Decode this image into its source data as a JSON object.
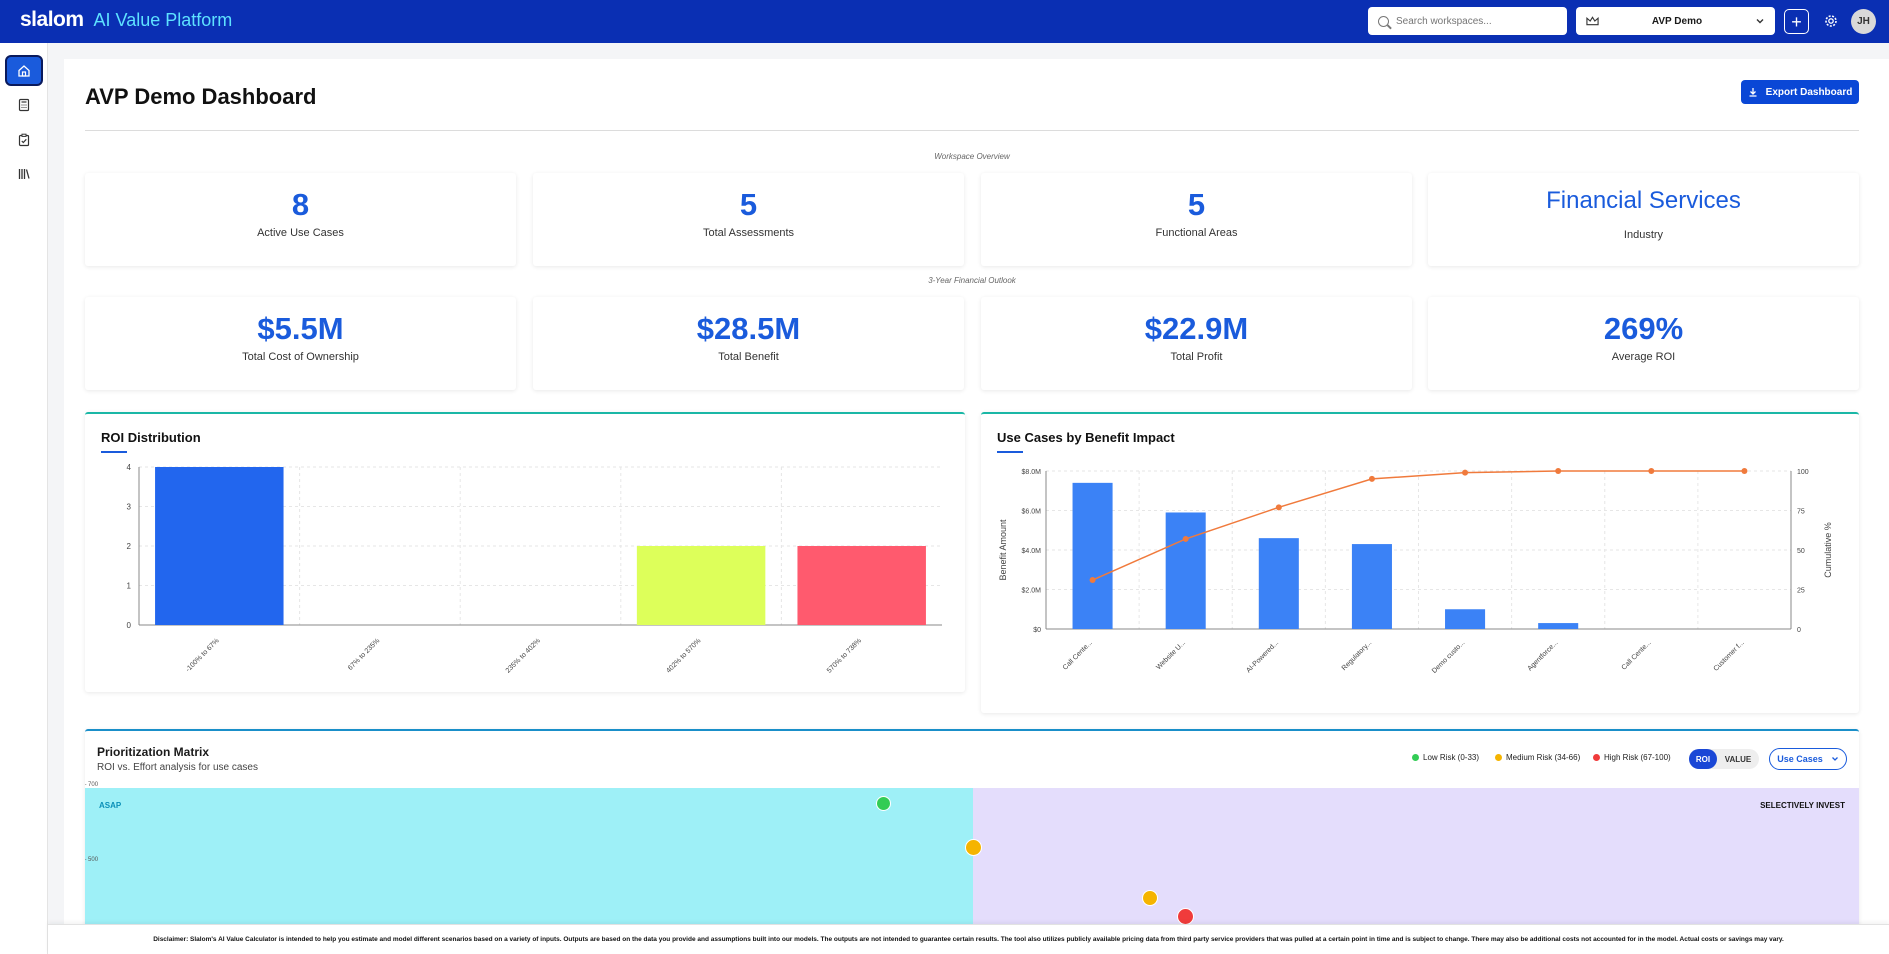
{
  "header": {
    "brand_logo": "slalom",
    "brand_name": "AI Value Platform",
    "search_placeholder": "Search workspaces...",
    "workspace": "AVP Demo",
    "add_label": "+",
    "avatar_initials": "JH"
  },
  "sidebar": {
    "items": [
      {
        "icon": "home-icon",
        "active": true
      },
      {
        "icon": "calculator-icon",
        "active": false
      },
      {
        "icon": "clipboard-check-icon",
        "active": false
      },
      {
        "icon": "library-icon",
        "active": false
      }
    ]
  },
  "page": {
    "title": "AVP Demo Dashboard",
    "export_label": "Export Dashboard"
  },
  "overview": {
    "label": "Workspace Overview",
    "stats": [
      {
        "value": "8",
        "label": "Active Use Cases"
      },
      {
        "value": "5",
        "label": "Total Assessments"
      },
      {
        "value": "5",
        "label": "Functional Areas"
      },
      {
        "value": "Financial Services",
        "label": "Industry"
      }
    ]
  },
  "financial": {
    "label": "3-Year Financial Outlook",
    "stats": [
      {
        "value": "$5.5M",
        "label": "Total Cost of Ownership"
      },
      {
        "value": "$28.5M",
        "label": "Total Benefit"
      },
      {
        "value": "$22.9M",
        "label": "Total Profit"
      },
      {
        "value": "269%",
        "label": "Average ROI"
      }
    ]
  },
  "roi_panel": {
    "title": "ROI Distribution"
  },
  "benefit_panel": {
    "title": "Use Cases by Benefit Impact"
  },
  "chart_data": [
    {
      "type": "bar",
      "title": "ROI Distribution",
      "categories": [
        "-100% to 67%",
        "67% to 235%",
        "235% to 402%",
        "402% to 570%",
        "570% to 738%"
      ],
      "values": [
        4,
        0,
        0,
        2,
        2
      ],
      "colors": [
        "#2266ee",
        "#2266ee",
        "#2266ee",
        "#ddff5a",
        "#ff5a6e"
      ],
      "ylim": [
        0,
        4
      ],
      "yticks": [
        0,
        1,
        2,
        3,
        4
      ],
      "grid": true
    },
    {
      "type": "bar",
      "title": "Use Cases by Benefit Impact",
      "categories": [
        "Call Cente...",
        "Website U...",
        "AI-Powered...",
        "Regulatory...",
        "Demo custo...",
        "Agentforce...",
        "Call Cente...",
        "Customer f..."
      ],
      "ylabel": "Benefit Amount",
      "y2label": "Cumulative %",
      "ylim": [
        0,
        8000000
      ],
      "yticks": [
        "$0",
        "$2.0M",
        "$4.0M",
        "$6.0M",
        "$8.0M"
      ],
      "y2lim": [
        0,
        100
      ],
      "y2ticks": [
        "0",
        "25",
        "50",
        "75",
        "100"
      ],
      "series": [
        {
          "type": "bar",
          "values": [
            7400000,
            5900000,
            4600000,
            4300000,
            1000000,
            300000,
            0,
            0
          ],
          "color": "#3b82f6"
        },
        {
          "type": "line",
          "values": [
            31,
            57,
            77,
            95,
            99,
            100,
            100,
            100
          ],
          "color": "#f07a3c"
        }
      ],
      "grid": true
    }
  ],
  "matrix": {
    "title": "Prioritization Matrix",
    "subtitle": "ROI vs. Effort analysis for use cases",
    "legend": [
      {
        "label": "Low Risk (0-33)",
        "color": "#33cc55"
      },
      {
        "label": "Medium Risk (34-66)",
        "color": "#f5b400"
      },
      {
        "label": "High Risk (67-100)",
        "color": "#f03b3b"
      }
    ],
    "toggle_roi": "ROI",
    "toggle_value": "VALUE",
    "dropdown": "Use Cases",
    "quadrant_left": "ASAP",
    "quadrant_right": "SELECTIVELY INVEST",
    "yticks": [
      "700",
      "500"
    ],
    "colors": {
      "left": "#9ef0f7",
      "right": "#e4ddfc"
    }
  },
  "disclaimer": "Disclaimer: Slalom's AI Value Calculator is intended to help you estimate and model different scenarios based on a variety of inputs. Outputs are based on the data you provide and assumptions built into our models. The outputs are not intended to guarantee certain results. The tool also utilizes publicly available pricing data from third party service providers that was pulled at a certain point in time and is subject to change. There may also be additional costs not accounted for in the model. Actual costs or savings may vary."
}
